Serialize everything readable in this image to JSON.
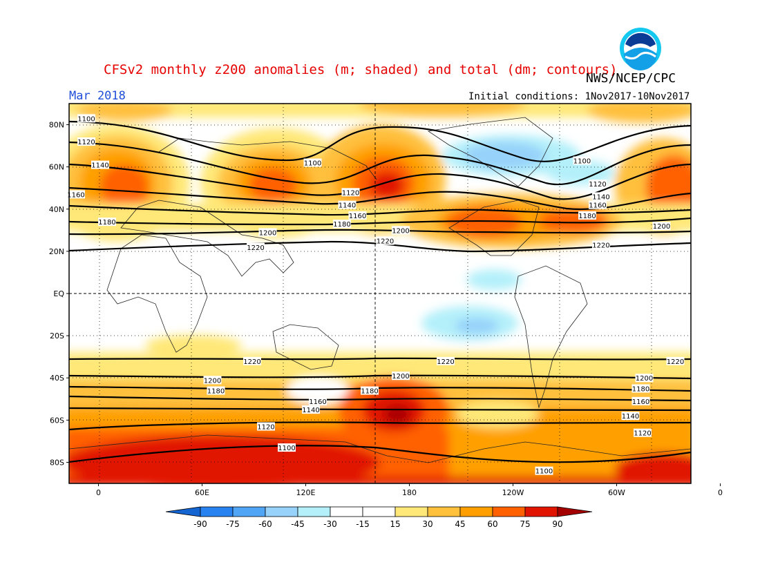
{
  "header": {
    "title": "CFSv2 monthly z200 anomalies (m; shaded) and total (dm; contours)",
    "agency": "NWS/NCEP/CPC",
    "month": "Mar 2018",
    "initial_conditions": "Initial conditions: 1Nov2017-10Nov2017",
    "logo_text": "NOAA"
  },
  "map": {
    "lat_ticks": [
      {
        "label": "80N",
        "lat": 80
      },
      {
        "label": "60N",
        "lat": 60
      },
      {
        "label": "40N",
        "lat": 40
      },
      {
        "label": "20N",
        "lat": 20
      },
      {
        "label": "EQ",
        "lat": 0
      },
      {
        "label": "20S",
        "lat": -20
      },
      {
        "label": "40S",
        "lat": -40
      },
      {
        "label": "60S",
        "lat": -60
      },
      {
        "label": "80S",
        "lat": -80
      }
    ],
    "lon_ticks": [
      {
        "label": "0",
        "lon": 0
      },
      {
        "label": "60E",
        "lon": 60
      },
      {
        "label": "120E",
        "lon": 120
      },
      {
        "label": "180",
        "lon": 180
      },
      {
        "label": "120W",
        "lon": 240
      },
      {
        "label": "60W",
        "lon": 300
      },
      {
        "label": "0",
        "lon": 360
      }
    ],
    "contour_labels": [
      {
        "text": "1100",
        "lon": -7,
        "lat": 83
      },
      {
        "text": "1120",
        "lon": -7,
        "lat": 72
      },
      {
        "text": "1140",
        "lon": 1,
        "lat": 61
      },
      {
        "text": "1160",
        "lon": -13,
        "lat": 47
      },
      {
        "text": "1180",
        "lon": 5,
        "lat": 34
      },
      {
        "text": "1200",
        "lon": 98,
        "lat": 29
      },
      {
        "text": "1220",
        "lon": 91,
        "lat": 22
      },
      {
        "text": "1100",
        "lon": 124,
        "lat": 62
      },
      {
        "text": "1120",
        "lon": 146,
        "lat": 48
      },
      {
        "text": "1140",
        "lon": 144,
        "lat": 42
      },
      {
        "text": "1160",
        "lon": 150,
        "lat": 37
      },
      {
        "text": "1180",
        "lon": 141,
        "lat": 33
      },
      {
        "text": "1200",
        "lon": 175,
        "lat": 30
      },
      {
        "text": "1220",
        "lon": 166,
        "lat": 25
      },
      {
        "text": "1100",
        "lon": 280,
        "lat": 63
      },
      {
        "text": "1120",
        "lon": 289,
        "lat": 52
      },
      {
        "text": "1140",
        "lon": 291,
        "lat": 46
      },
      {
        "text": "1160",
        "lon": 289,
        "lat": 42
      },
      {
        "text": "1180",
        "lon": 283,
        "lat": 37
      },
      {
        "text": "1200",
        "lon": 326,
        "lat": 32
      },
      {
        "text": "1220",
        "lon": 291,
        "lat": 23
      },
      {
        "text": "1220",
        "lon": 89,
        "lat": -32
      },
      {
        "text": "1220",
        "lon": 201,
        "lat": -32
      },
      {
        "text": "1220",
        "lon": 334,
        "lat": -32
      },
      {
        "text": "1200",
        "lon": 66,
        "lat": -41
      },
      {
        "text": "1200",
        "lon": 175,
        "lat": -39
      },
      {
        "text": "1200",
        "lon": 316,
        "lat": -40
      },
      {
        "text": "1180",
        "lon": 68,
        "lat": -46
      },
      {
        "text": "1180",
        "lon": 157,
        "lat": -46
      },
      {
        "text": "1180",
        "lon": 314,
        "lat": -45
      },
      {
        "text": "1160",
        "lon": 127,
        "lat": -51
      },
      {
        "text": "1160",
        "lon": 314,
        "lat": -51
      },
      {
        "text": "1140",
        "lon": 123,
        "lat": -55
      },
      {
        "text": "1140",
        "lon": 308,
        "lat": -58
      },
      {
        "text": "1120",
        "lon": 97,
        "lat": -63
      },
      {
        "text": "1120",
        "lon": 315,
        "lat": -66
      },
      {
        "text": "1100",
        "lon": 109,
        "lat": -73
      },
      {
        "text": "1100",
        "lon": 258,
        "lat": -84
      }
    ]
  },
  "colorbar": {
    "labels": [
      "-90",
      "-75",
      "-60",
      "-45",
      "-30",
      "-15",
      "15",
      "30",
      "45",
      "60",
      "75",
      "90"
    ],
    "colors": [
      "#1464d2",
      "#2882f0",
      "#50a5f5",
      "#96d2fa",
      "#b4f0fa",
      "#ffffff",
      "#ffe878",
      "#ffc03c",
      "#ffa000",
      "#ff6000",
      "#e11400",
      "#a50000"
    ]
  }
}
